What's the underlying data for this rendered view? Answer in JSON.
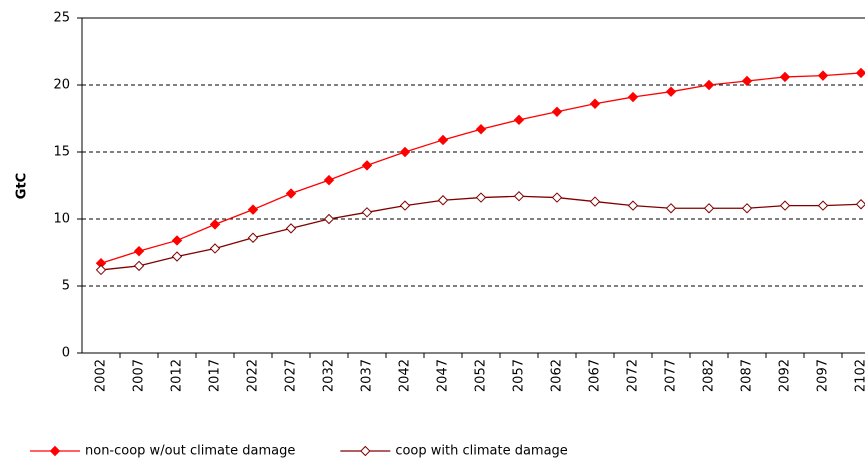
{
  "chart_data": {
    "type": "line",
    "y_label": "GtC",
    "categories": [
      "2002",
      "2007",
      "2012",
      "2017",
      "2022",
      "2027",
      "2032",
      "2037",
      "2042",
      "2047",
      "2052",
      "2057",
      "2062",
      "2067",
      "2072",
      "2077",
      "2082",
      "2087",
      "2092",
      "2097",
      "2102"
    ],
    "series": [
      {
        "name": "non-coop w/out climate damage",
        "color": "#ff0000",
        "marker": "filled-diamond",
        "values": [
          6.7,
          7.6,
          8.4,
          9.6,
          10.7,
          11.9,
          12.9,
          14.0,
          15.0,
          15.9,
          16.7,
          17.4,
          18.0,
          18.6,
          19.1,
          19.5,
          20.0,
          20.3,
          20.6,
          20.7,
          20.9
        ]
      },
      {
        "name": "coop with climate damage",
        "color": "#800000",
        "marker": "open-diamond",
        "values": [
          6.2,
          6.5,
          7.2,
          7.8,
          8.6,
          9.3,
          10.0,
          10.5,
          11.0,
          11.4,
          11.6,
          11.7,
          11.6,
          11.3,
          11.0,
          10.8,
          10.8,
          10.8,
          11.0,
          11.0,
          11.1
        ]
      }
    ],
    "ylim": [
      0,
      25
    ],
    "yticks": [
      0,
      5,
      10,
      15,
      20,
      25
    ],
    "grid": true
  }
}
